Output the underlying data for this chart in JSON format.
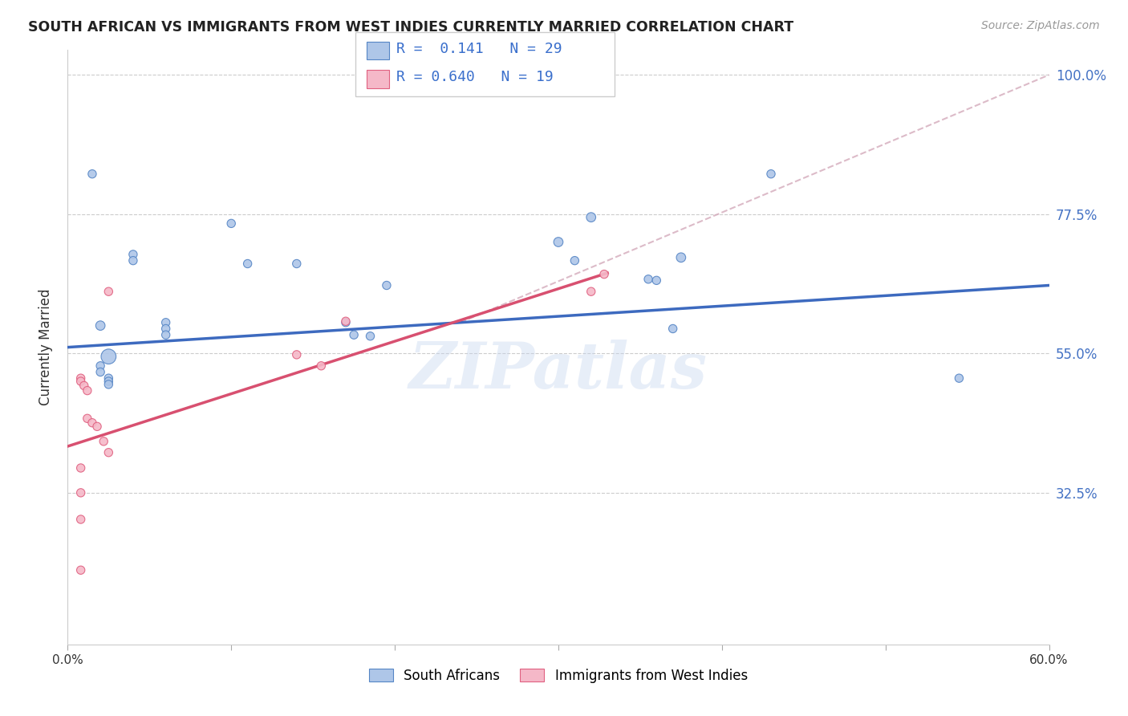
{
  "title": "SOUTH AFRICAN VS IMMIGRANTS FROM WEST INDIES CURRENTLY MARRIED CORRELATION CHART",
  "source": "Source: ZipAtlas.com",
  "ylabel": "Currently Married",
  "x_min": 0.0,
  "x_max": 0.6,
  "y_min": 0.08,
  "y_max": 1.04,
  "y_ticks": [
    0.325,
    0.55,
    0.775,
    1.0
  ],
  "y_tick_labels": [
    "32.5%",
    "55.0%",
    "77.5%",
    "100.0%"
  ],
  "x_ticks": [
    0.0,
    0.1,
    0.2,
    0.3,
    0.4,
    0.5,
    0.6
  ],
  "x_tick_labels": [
    "0.0%",
    "",
    "",
    "",
    "",
    "",
    "60.0%"
  ],
  "legend_label1": "South Africans",
  "legend_label2": "Immigrants from West Indies",
  "blue_color": "#aec6e8",
  "pink_color": "#f5b8c8",
  "blue_edge_color": "#5585c5",
  "pink_edge_color": "#e06080",
  "blue_line_color": "#3d6abf",
  "pink_line_color": "#d85070",
  "ref_line_color": "#d4aabb",
  "watermark": "ZIPatlas",
  "blue_x": [
    0.02,
    0.04,
    0.04,
    0.06,
    0.06,
    0.06,
    0.02,
    0.02,
    0.025,
    0.025,
    0.025,
    0.025,
    0.1,
    0.11,
    0.14,
    0.17,
    0.175,
    0.185,
    0.195,
    0.3,
    0.31,
    0.32,
    0.355,
    0.36,
    0.375,
    0.37,
    0.43,
    0.545,
    0.015
  ],
  "blue_y": [
    0.595,
    0.71,
    0.7,
    0.6,
    0.59,
    0.58,
    0.53,
    0.52,
    0.51,
    0.505,
    0.545,
    0.5,
    0.76,
    0.695,
    0.695,
    0.6,
    0.58,
    0.578,
    0.66,
    0.73,
    0.7,
    0.77,
    0.67,
    0.668,
    0.705,
    0.59,
    0.84,
    0.51,
    0.84
  ],
  "blue_sizes": [
    70,
    55,
    55,
    55,
    55,
    55,
    55,
    55,
    55,
    55,
    180,
    55,
    55,
    55,
    55,
    55,
    55,
    55,
    55,
    70,
    55,
    70,
    55,
    55,
    70,
    55,
    55,
    55,
    55
  ],
  "pink_x": [
    0.008,
    0.008,
    0.01,
    0.012,
    0.012,
    0.015,
    0.018,
    0.022,
    0.025,
    0.025,
    0.14,
    0.155,
    0.17,
    0.32,
    0.328,
    0.008,
    0.008,
    0.008,
    0.008
  ],
  "pink_y": [
    0.51,
    0.505,
    0.498,
    0.49,
    0.445,
    0.438,
    0.432,
    0.408,
    0.39,
    0.65,
    0.548,
    0.53,
    0.602,
    0.65,
    0.678,
    0.282,
    0.325,
    0.365,
    0.2
  ],
  "pink_sizes": [
    55,
    55,
    55,
    55,
    55,
    55,
    55,
    55,
    55,
    55,
    55,
    55,
    55,
    55,
    55,
    55,
    55,
    55,
    55
  ],
  "blue_trend_x": [
    0.0,
    0.6
  ],
  "blue_trend_y": [
    0.56,
    0.66
  ],
  "pink_trend_x": [
    0.0,
    0.33
  ],
  "pink_trend_y": [
    0.4,
    0.68
  ],
  "ref_line_x": [
    0.24,
    0.6
  ],
  "ref_line_y": [
    0.6,
    1.0
  ]
}
